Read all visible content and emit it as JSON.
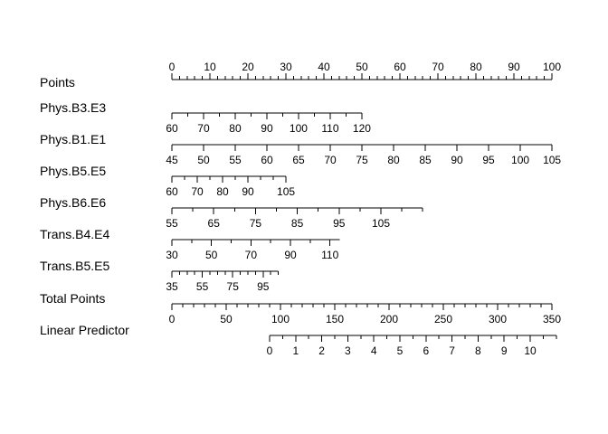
{
  "chart_data": {
    "type": "nomogram",
    "title": "",
    "rows": [
      {
        "label": "Points",
        "range": [
          0,
          100
        ],
        "labels_above": true,
        "tick_labels": [
          0,
          10,
          20,
          30,
          40,
          50,
          60,
          70,
          80,
          90,
          100
        ],
        "minor_step": 2
      },
      {
        "label": "Phys.B3.E3",
        "points_per_unit": 0.833,
        "value_origin": 60,
        "tick_labels": [
          60,
          70,
          80,
          90,
          100,
          110,
          120
        ],
        "minor_step": 5
      },
      {
        "label": "Phys.B1.E1",
        "points_per_unit": 1.667,
        "value_origin": 45,
        "tick_labels": [
          45,
          50,
          55,
          60,
          65,
          70,
          75,
          80,
          85,
          90,
          95,
          100,
          105
        ],
        "minor_step": 5
      },
      {
        "label": "Phys.B5.E5",
        "points_per_unit": 0.667,
        "value_origin": 60,
        "tick_labels": [
          60,
          70,
          80,
          90,
          105
        ],
        "minor_step": 5
      },
      {
        "label": "Phys.B6.E6",
        "points_per_unit": 1.1,
        "value_origin": 55,
        "value_end": 115,
        "tick_labels": [
          55,
          65,
          75,
          85,
          95,
          105
        ],
        "minor_step": 5
      },
      {
        "label": "Trans.B4.E4",
        "points_per_unit": 0.52,
        "value_origin": 30,
        "value_end": 115,
        "tick_labels": [
          30,
          50,
          70,
          90,
          110
        ],
        "minor_step": 10
      },
      {
        "label": "Trans.B5.E5",
        "points_per_unit": 0.4,
        "value_origin": 35,
        "value_end": 105,
        "tick_labels": [
          35,
          55,
          75,
          95
        ],
        "minor_step": 5
      },
      {
        "label": "Total Points",
        "range": [
          0,
          350
        ],
        "tick_labels": [
          0,
          50,
          100,
          150,
          200,
          250,
          300,
          350
        ],
        "minor_step": 10
      },
      {
        "label": "Linear Predictor",
        "total_points_per_unit": 24,
        "total_points_origin": 90,
        "value_origin": 0,
        "value_end": 11,
        "tick_labels": [
          0,
          1,
          2,
          3,
          4,
          5,
          6,
          7,
          8,
          9,
          10
        ],
        "minor_step": 0.5
      }
    ]
  }
}
